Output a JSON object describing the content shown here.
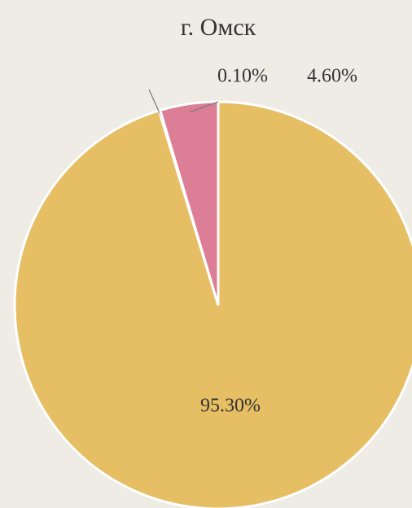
{
  "chart_data": {
    "type": "pie",
    "title": "г. Омск",
    "values": [
      95.3,
      0.1,
      4.6
    ],
    "value_labels": [
      "95.30%",
      "0.10%",
      "4.60%"
    ],
    "colors": [
      "#e6be64",
      "#7f9fc8",
      "#dc7f96"
    ]
  }
}
